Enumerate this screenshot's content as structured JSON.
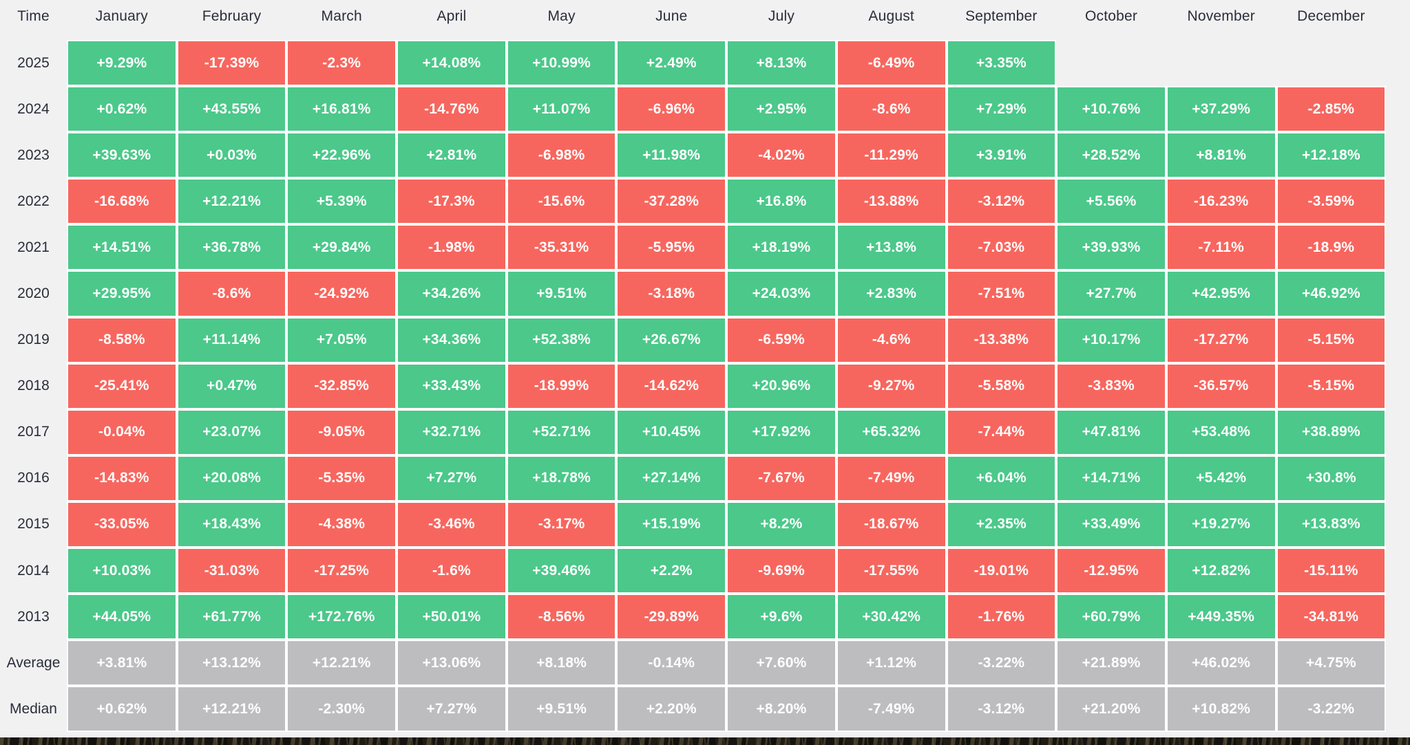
{
  "header": {
    "time_label": "Time"
  },
  "colors": {
    "positive": "#4bc88a",
    "negative": "#f7665e",
    "summary": "#bdbdbf",
    "background": "#f1f1f2",
    "header_text": "#2a2e39",
    "value_text": "#ffffff",
    "cell_divider": "#ffffff"
  },
  "chart_data": {
    "type": "heatmap",
    "columns": [
      "January",
      "February",
      "March",
      "April",
      "May",
      "June",
      "July",
      "August",
      "September",
      "October",
      "November",
      "December"
    ],
    "rows": [
      {
        "label": "2025",
        "type": "year",
        "values": [
          "+9.29%",
          "-17.39%",
          "-2.3%",
          "+14.08%",
          "+10.99%",
          "+2.49%",
          "+8.13%",
          "-6.49%",
          "+3.35%",
          null,
          null,
          null
        ]
      },
      {
        "label": "2024",
        "type": "year",
        "values": [
          "+0.62%",
          "+43.55%",
          "+16.81%",
          "-14.76%",
          "+11.07%",
          "-6.96%",
          "+2.95%",
          "-8.6%",
          "+7.29%",
          "+10.76%",
          "+37.29%",
          "-2.85%"
        ]
      },
      {
        "label": "2023",
        "type": "year",
        "values": [
          "+39.63%",
          "+0.03%",
          "+22.96%",
          "+2.81%",
          "-6.98%",
          "+11.98%",
          "-4.02%",
          "-11.29%",
          "+3.91%",
          "+28.52%",
          "+8.81%",
          "+12.18%"
        ]
      },
      {
        "label": "2022",
        "type": "year",
        "values": [
          "-16.68%",
          "+12.21%",
          "+5.39%",
          "-17.3%",
          "-15.6%",
          "-37.28%",
          "+16.8%",
          "-13.88%",
          "-3.12%",
          "+5.56%",
          "-16.23%",
          "-3.59%"
        ]
      },
      {
        "label": "2021",
        "type": "year",
        "values": [
          "+14.51%",
          "+36.78%",
          "+29.84%",
          "-1.98%",
          "-35.31%",
          "-5.95%",
          "+18.19%",
          "+13.8%",
          "-7.03%",
          "+39.93%",
          "-7.11%",
          "-18.9%"
        ]
      },
      {
        "label": "2020",
        "type": "year",
        "values": [
          "+29.95%",
          "-8.6%",
          "-24.92%",
          "+34.26%",
          "+9.51%",
          "-3.18%",
          "+24.03%",
          "+2.83%",
          "-7.51%",
          "+27.7%",
          "+42.95%",
          "+46.92%"
        ]
      },
      {
        "label": "2019",
        "type": "year",
        "values": [
          "-8.58%",
          "+11.14%",
          "+7.05%",
          "+34.36%",
          "+52.38%",
          "+26.67%",
          "-6.59%",
          "-4.6%",
          "-13.38%",
          "+10.17%",
          "-17.27%",
          "-5.15%"
        ]
      },
      {
        "label": "2018",
        "type": "year",
        "values": [
          "-25.41%",
          "+0.47%",
          "-32.85%",
          "+33.43%",
          "-18.99%",
          "-14.62%",
          "+20.96%",
          "-9.27%",
          "-5.58%",
          "-3.83%",
          "-36.57%",
          "-5.15%"
        ]
      },
      {
        "label": "2017",
        "type": "year",
        "values": [
          "-0.04%",
          "+23.07%",
          "-9.05%",
          "+32.71%",
          "+52.71%",
          "+10.45%",
          "+17.92%",
          "+65.32%",
          "-7.44%",
          "+47.81%",
          "+53.48%",
          "+38.89%"
        ]
      },
      {
        "label": "2016",
        "type": "year",
        "values": [
          "-14.83%",
          "+20.08%",
          "-5.35%",
          "+7.27%",
          "+18.78%",
          "+27.14%",
          "-7.67%",
          "-7.49%",
          "+6.04%",
          "+14.71%",
          "+5.42%",
          "+30.8%"
        ]
      },
      {
        "label": "2015",
        "type": "year",
        "values": [
          "-33.05%",
          "+18.43%",
          "-4.38%",
          "-3.46%",
          "-3.17%",
          "+15.19%",
          "+8.2%",
          "-18.67%",
          "+2.35%",
          "+33.49%",
          "+19.27%",
          "+13.83%"
        ]
      },
      {
        "label": "2014",
        "type": "year",
        "values": [
          "+10.03%",
          "-31.03%",
          "-17.25%",
          "-1.6%",
          "+39.46%",
          "+2.2%",
          "-9.69%",
          "-17.55%",
          "-19.01%",
          "-12.95%",
          "+12.82%",
          "-15.11%"
        ]
      },
      {
        "label": "2013",
        "type": "year",
        "values": [
          "+44.05%",
          "+61.77%",
          "+172.76%",
          "+50.01%",
          "-8.56%",
          "-29.89%",
          "+9.6%",
          "+30.42%",
          "-1.76%",
          "+60.79%",
          "+449.35%",
          "-34.81%"
        ]
      },
      {
        "label": "Average",
        "type": "summary",
        "values": [
          "+3.81%",
          "+13.12%",
          "+12.21%",
          "+13.06%",
          "+8.18%",
          "-0.14%",
          "+7.60%",
          "+1.12%",
          "-3.22%",
          "+21.89%",
          "+46.02%",
          "+4.75%"
        ]
      },
      {
        "label": "Median",
        "type": "summary",
        "values": [
          "+0.62%",
          "+12.21%",
          "-2.30%",
          "+7.27%",
          "+9.51%",
          "+2.20%",
          "+8.20%",
          "-7.49%",
          "-3.12%",
          "+21.20%",
          "+10.82%",
          "-3.22%"
        ]
      }
    ]
  }
}
